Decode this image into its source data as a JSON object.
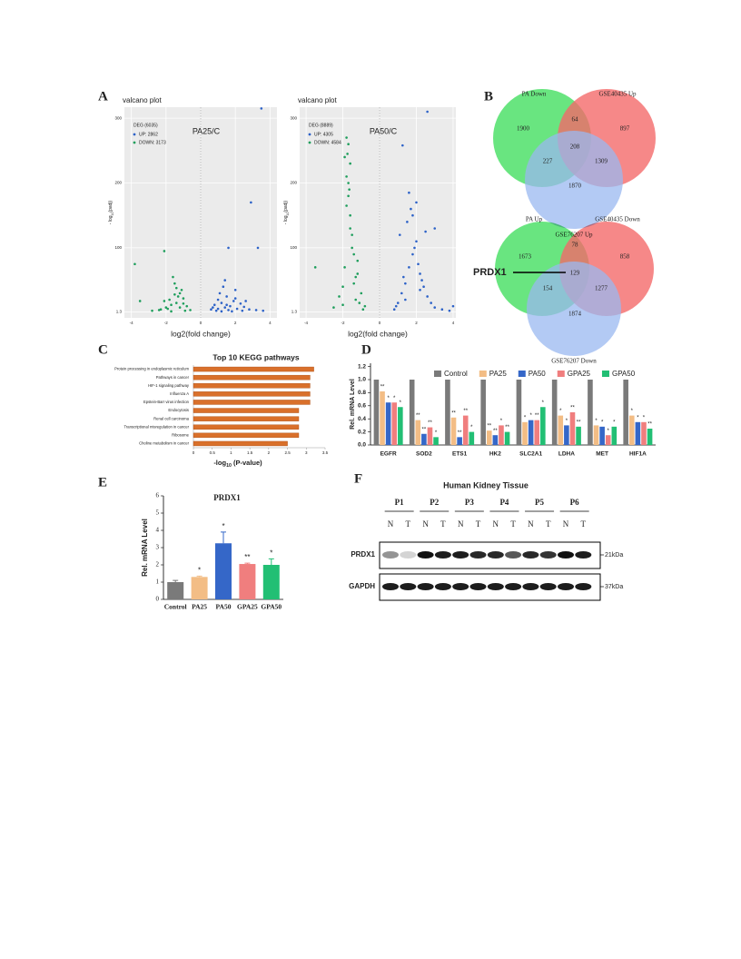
{
  "panel_letters": [
    "A",
    "B",
    "C",
    "D",
    "E",
    "F"
  ],
  "chart_data": [
    {
      "type": "scatter",
      "title": "valcano plot",
      "annotation": "PA25/C",
      "legend_title": "DEG (6035)",
      "xlabel": "log2(fold change)",
      "ylabel": {
        "prefix": "- log",
        "sub": "10",
        "rest": "(padj)"
      },
      "xlim": [
        -4.4,
        4.4
      ],
      "xticks": [
        -4,
        -2,
        0,
        2,
        4
      ],
      "ylim": [
        -8,
        317
      ],
      "yticks": [
        1.3,
        100,
        200,
        300
      ],
      "series": [
        {
          "name": "UP: 2862",
          "color": "#2d62c8",
          "x": [
            0.6,
            0.8,
            1.0,
            1.2,
            1.4,
            1.5,
            1.7,
            1.9,
            2.1,
            2.3,
            2.5,
            2.8,
            3.2,
            3.6,
            1.1,
            0.9,
            1.3,
            1.6,
            2.0,
            1.8,
            2.4,
            0.7,
            1.2,
            1.5,
            2.0,
            2.6,
            1.0,
            1.4,
            1.6,
            2.9,
            3.3,
            3.5
          ],
          "y": [
            5,
            12,
            20,
            15,
            8,
            25,
            10,
            18,
            6,
            14,
            9,
            5,
            4,
            3,
            30,
            3,
            40,
            4,
            22,
            2,
            3,
            8,
            2,
            12,
            35,
            18,
            6,
            50,
            100,
            170,
            100,
            315
          ]
        },
        {
          "name": "DOWN: 3173",
          "color": "#1e9e5c",
          "x": [
            -0.6,
            -0.8,
            -1.0,
            -1.2,
            -1.4,
            -1.5,
            -1.7,
            -1.9,
            -2.1,
            -2.3,
            -1.1,
            -1.3,
            -1.6,
            -2.0,
            -1.8,
            -0.9,
            -1.2,
            -1.5,
            -2.4,
            -2.8,
            -1.0,
            -1.4,
            -1.7,
            -3.8,
            -2.1,
            -3.5
          ],
          "y": [
            4,
            10,
            22,
            30,
            15,
            45,
            12,
            6,
            18,
            5,
            35,
            25,
            55,
            8,
            20,
            3,
            8,
            28,
            4,
            3,
            14,
            38,
            2,
            75,
            95,
            18
          ]
        }
      ]
    },
    {
      "type": "scatter",
      "title": "valcano plot",
      "annotation": "PA50/C",
      "legend_title": "DEG (8889)",
      "xlabel": "log2(fold change)",
      "ylabel": {
        "prefix": "- log",
        "sub": "10",
        "rest": "(padj)"
      },
      "xlim": [
        -4.35,
        4.15
      ],
      "xticks": [
        -4,
        -2,
        0,
        2,
        4
      ],
      "ylim": [
        -8,
        317
      ],
      "yticks": [
        1.3,
        100,
        200,
        300
      ],
      "series": [
        {
          "name": "UP: 4305",
          "color": "#2d62c8",
          "x": [
            0.8,
            1.0,
            1.2,
            1.4,
            1.6,
            1.8,
            2.0,
            2.2,
            2.4,
            2.6,
            2.8,
            3.0,
            3.4,
            3.8,
            1.1,
            1.5,
            1.9,
            2.1,
            1.3,
            1.7,
            2.3,
            0.9,
            1.6,
            1.8,
            2.0,
            2.5,
            4.0,
            3.0,
            1.4,
            2.2,
            1.25,
            2.6
          ],
          "y": [
            5,
            15,
            30,
            45,
            70,
            90,
            110,
            60,
            40,
            25,
            15,
            8,
            5,
            3,
            120,
            140,
            100,
            75,
            55,
            160,
            50,
            10,
            185,
            150,
            170,
            125,
            10,
            130,
            20,
            35,
            258,
            310
          ]
        },
        {
          "name": "DOWN: 4584",
          "color": "#1e9e5c",
          "x": [
            -0.8,
            -1.0,
            -1.2,
            -1.4,
            -1.5,
            -1.6,
            -1.7,
            -1.8,
            -1.9,
            -2.0,
            -1.3,
            -1.1,
            -1.7,
            -1.6,
            -1.8,
            -1.5,
            -1.9,
            -2.2,
            -2.5,
            -1.4,
            -1.2,
            -1.7,
            -1.8,
            -1.6,
            -3.5,
            -0.9,
            -1.3,
            -2.0,
            -1.75,
            -1.65
          ],
          "y": [
            10,
            30,
            60,
            90,
            120,
            150,
            180,
            210,
            240,
            40,
            20,
            15,
            260,
            230,
            270,
            100,
            70,
            25,
            8,
            45,
            80,
            200,
            165,
            130,
            70,
            5,
            55,
            12,
            245,
            190
          ]
        }
      ]
    },
    {
      "type": "hbar",
      "title": "Top 10 KEGG pathways",
      "xlabel": {
        "prefix": "-log",
        "sub": "10",
        "rest": " (P-value)"
      },
      "categories": [
        "Protein processing in endoplasmic reticulum",
        "Pathways in cancer",
        "HIF-1 signaling pathway",
        "Influenza A",
        "Epstein-Barr virus infection",
        "Endocytosis",
        "Renal cell carcinoma",
        "Transcriptional misregulation in cancer",
        "Ribosome",
        "Choline metabolism in cancer"
      ],
      "values": [
        3.2,
        3.1,
        3.1,
        3.1,
        3.1,
        2.8,
        2.8,
        2.8,
        2.8,
        2.5
      ],
      "color": "#d9702b",
      "xlim": [
        0,
        3.5
      ],
      "xticks": [
        0,
        0.5,
        1,
        1.5,
        2,
        2.5,
        3,
        3.5
      ]
    },
    {
      "type": "grouped_bar",
      "ylabel": "Rel. mRNA Level",
      "categories": [
        "EGFR",
        "SOD2",
        "ETS1",
        "HK2",
        "SLC2A1",
        "LDHA",
        "MET",
        "HIF1A"
      ],
      "ylim": [
        0,
        1.25
      ],
      "yticks": [
        {
          "value": 0,
          "label": "0.0"
        },
        0.2,
        0.4,
        0.6,
        0.8,
        {
          "value": 1,
          "label": "1.0"
        },
        1.2
      ],
      "series": [
        {
          "name": "Control",
          "color": "#7a7a7a",
          "values": [
            1,
            1,
            1,
            1,
            1,
            1,
            1,
            1
          ],
          "stars": [
            null,
            null,
            null,
            null,
            null,
            null,
            null,
            null
          ]
        },
        {
          "name": "PA25",
          "color": "#f3bd85",
          "values": [
            0.82,
            0.38,
            0.42,
            0.22,
            0.35,
            0.45,
            0.3,
            0.45
          ],
          "stars": [
            "**",
            "**",
            "**",
            "**",
            "*",
            "*",
            "*",
            "*"
          ]
        },
        {
          "name": "PA50",
          "color": "#3567c8",
          "values": [
            0.65,
            0.17,
            0.12,
            0.15,
            0.38,
            0.3,
            0.28,
            0.35
          ],
          "stars": [
            "*",
            "**",
            "**",
            "**",
            "*",
            "*",
            "*",
            "*"
          ]
        },
        {
          "name": "GPA25",
          "color": "#f07e7e",
          "values": [
            0.65,
            0.27,
            0.45,
            0.3,
            0.38,
            0.5,
            0.15,
            0.35
          ],
          "stars": [
            "*",
            "**",
            "**",
            "*",
            "**",
            "**",
            "*",
            "*"
          ]
        },
        {
          "name": "GPA50",
          "color": "#22bf74",
          "values": [
            0.58,
            0.12,
            0.2,
            0.2,
            0.58,
            0.28,
            0.28,
            0.25
          ],
          "stars": [
            "*",
            "*",
            "*",
            "**",
            "*",
            "**",
            "*",
            "**"
          ]
        }
      ]
    },
    {
      "type": "bar",
      "title": "PRDX1",
      "ylabel": "Rel. mRNA Level",
      "categories": [
        "Control",
        "PA25",
        "PA50",
        "GPA25",
        "GPA50"
      ],
      "values": [
        1,
        1.3,
        3.25,
        2.05,
        2.0
      ],
      "errors": [
        0.1,
        0.05,
        0.65,
        0.05,
        0.35
      ],
      "stars": [
        null,
        "*",
        "*",
        "**",
        "*"
      ],
      "colors": [
        "#7a7a7a",
        "#f3bd85",
        "#3567c8",
        "#f07e7e",
        "#22bf74"
      ],
      "ylim": [
        0,
        6
      ],
      "yticks": [
        0,
        1,
        2,
        3,
        4,
        5,
        6
      ]
    }
  ],
  "venn": {
    "top": {
      "labels": [
        "PA Down",
        "GSE40435 Up",
        "GSE76207 Up"
      ],
      "counts": [
        "1900",
        "64",
        "897",
        "208",
        "227",
        "1309",
        "1870"
      ]
    },
    "bottom": {
      "labels": [
        "PA Up",
        "GSE40435 Down",
        "GSE76207 Down"
      ],
      "counts": [
        "1673",
        "78",
        "858",
        "129",
        "154",
        "1277",
        "1874"
      ]
    },
    "callout": "PRDX1"
  },
  "blot": {
    "title": "Human Kidney Tissue",
    "patients": [
      "P1",
      "P2",
      "P3",
      "P4",
      "P5",
      "P6"
    ],
    "lanes": [
      "N",
      "T"
    ],
    "rows": [
      {
        "name": "PRDX1",
        "size": "21kDa"
      },
      {
        "name": "GAPDH",
        "size": "37kDa"
      }
    ]
  }
}
